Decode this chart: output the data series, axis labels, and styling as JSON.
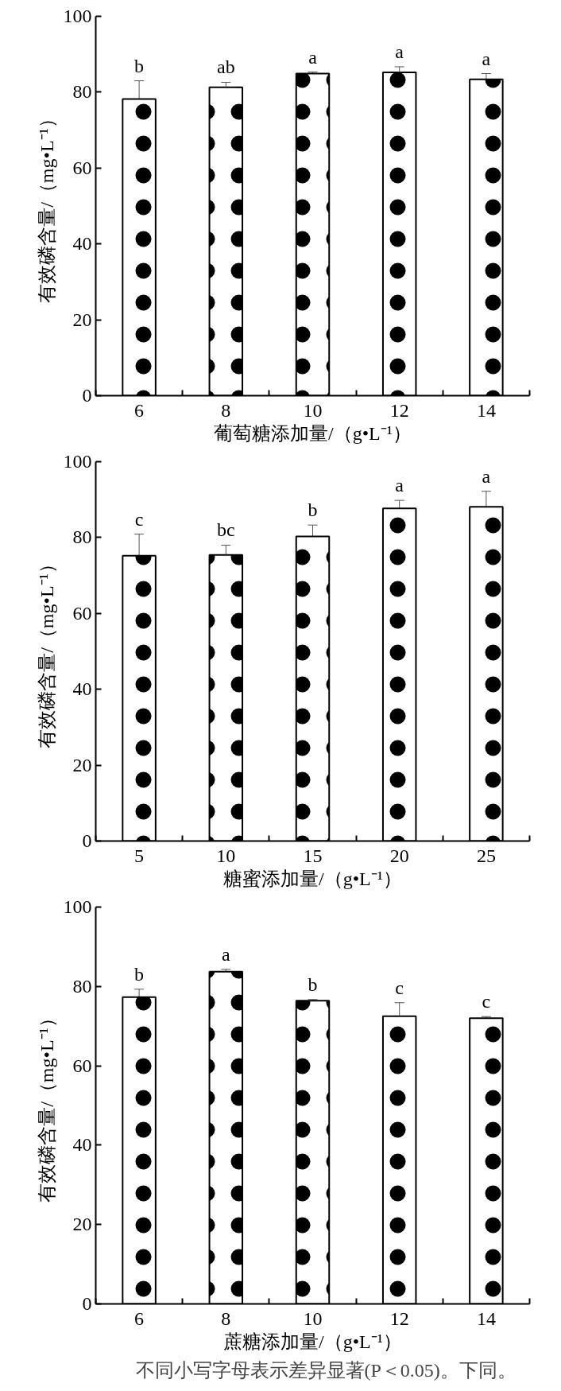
{
  "chart_data": [
    {
      "type": "bar",
      "xlabel": "葡萄糖添加量/（g•L⁻¹）",
      "ylabel": "有效磷含量/（mg•L⁻¹）",
      "categories": [
        "6",
        "8",
        "10",
        "12",
        "14"
      ],
      "values": [
        78.2,
        81.3,
        84.9,
        85.2,
        83.4
      ],
      "errors": [
        4.8,
        1.3,
        0.4,
        1.5,
        1.5
      ],
      "color": "#ffffff",
      "ylim": [
        0,
        100
      ],
      "yticks": [
        0,
        20,
        40,
        60,
        80,
        100
      ],
      "grid": false,
      "annotations": [
        {
          "text": "b",
          "x": "6",
          "y": 83.0
        },
        {
          "text": "ab",
          "x": "8",
          "y": 82.6
        },
        {
          "text": "a",
          "x": "10",
          "y": 85.3
        },
        {
          "text": "a",
          "x": "12",
          "y": 86.7
        },
        {
          "text": "a",
          "x": "14",
          "y": 84.9
        }
      ]
    },
    {
      "type": "bar",
      "xlabel": "糖蜜添加量/（g•L⁻¹）",
      "ylabel": "有效磷含量/（mg•L⁻¹）",
      "categories": [
        "5",
        "10",
        "15",
        "20",
        "25"
      ],
      "values": [
        75.2,
        75.4,
        80.3,
        87.7,
        88.1
      ],
      "errors": [
        5.7,
        2.6,
        3.0,
        2.1,
        4.1
      ],
      "color": "#ffffff",
      "ylim": [
        0,
        100
      ],
      "yticks": [
        0,
        20,
        40,
        60,
        80,
        100
      ],
      "grid": false,
      "annotations": [
        {
          "text": "c",
          "x": "5",
          "y": 80.9
        },
        {
          "text": "bc",
          "x": "10",
          "y": 78.0
        },
        {
          "text": "b",
          "x": "15",
          "y": 83.3
        },
        {
          "text": "a",
          "x": "20",
          "y": 89.8
        },
        {
          "text": "a",
          "x": "25",
          "y": 92.2
        }
      ]
    },
    {
      "type": "bar",
      "xlabel": "蔗糖添加量/（g•L⁻¹）",
      "ylabel": "有效磷含量/（mg•L⁻¹）",
      "categories": [
        "6",
        "8",
        "10",
        "12",
        "14"
      ],
      "values": [
        77.3,
        83.7,
        76.4,
        72.5,
        72.0
      ],
      "errors": [
        2.0,
        0.6,
        0.3,
        3.4,
        0.4
      ],
      "color": "#ffffff",
      "ylim": [
        0,
        100
      ],
      "yticks": [
        0,
        20,
        40,
        60,
        80,
        100
      ],
      "grid": false,
      "annotations": [
        {
          "text": "b",
          "x": "6",
          "y": 79.3
        },
        {
          "text": "a",
          "x": "8",
          "y": 84.3
        },
        {
          "text": "b",
          "x": "10",
          "y": 76.7
        },
        {
          "text": "c",
          "x": "12",
          "y": 75.9
        },
        {
          "text": "c",
          "x": "14",
          "y": 72.4
        },
        "不同小写字母表示差异显著(P＜0.05)。下同。"
      ]
    }
  ]
}
